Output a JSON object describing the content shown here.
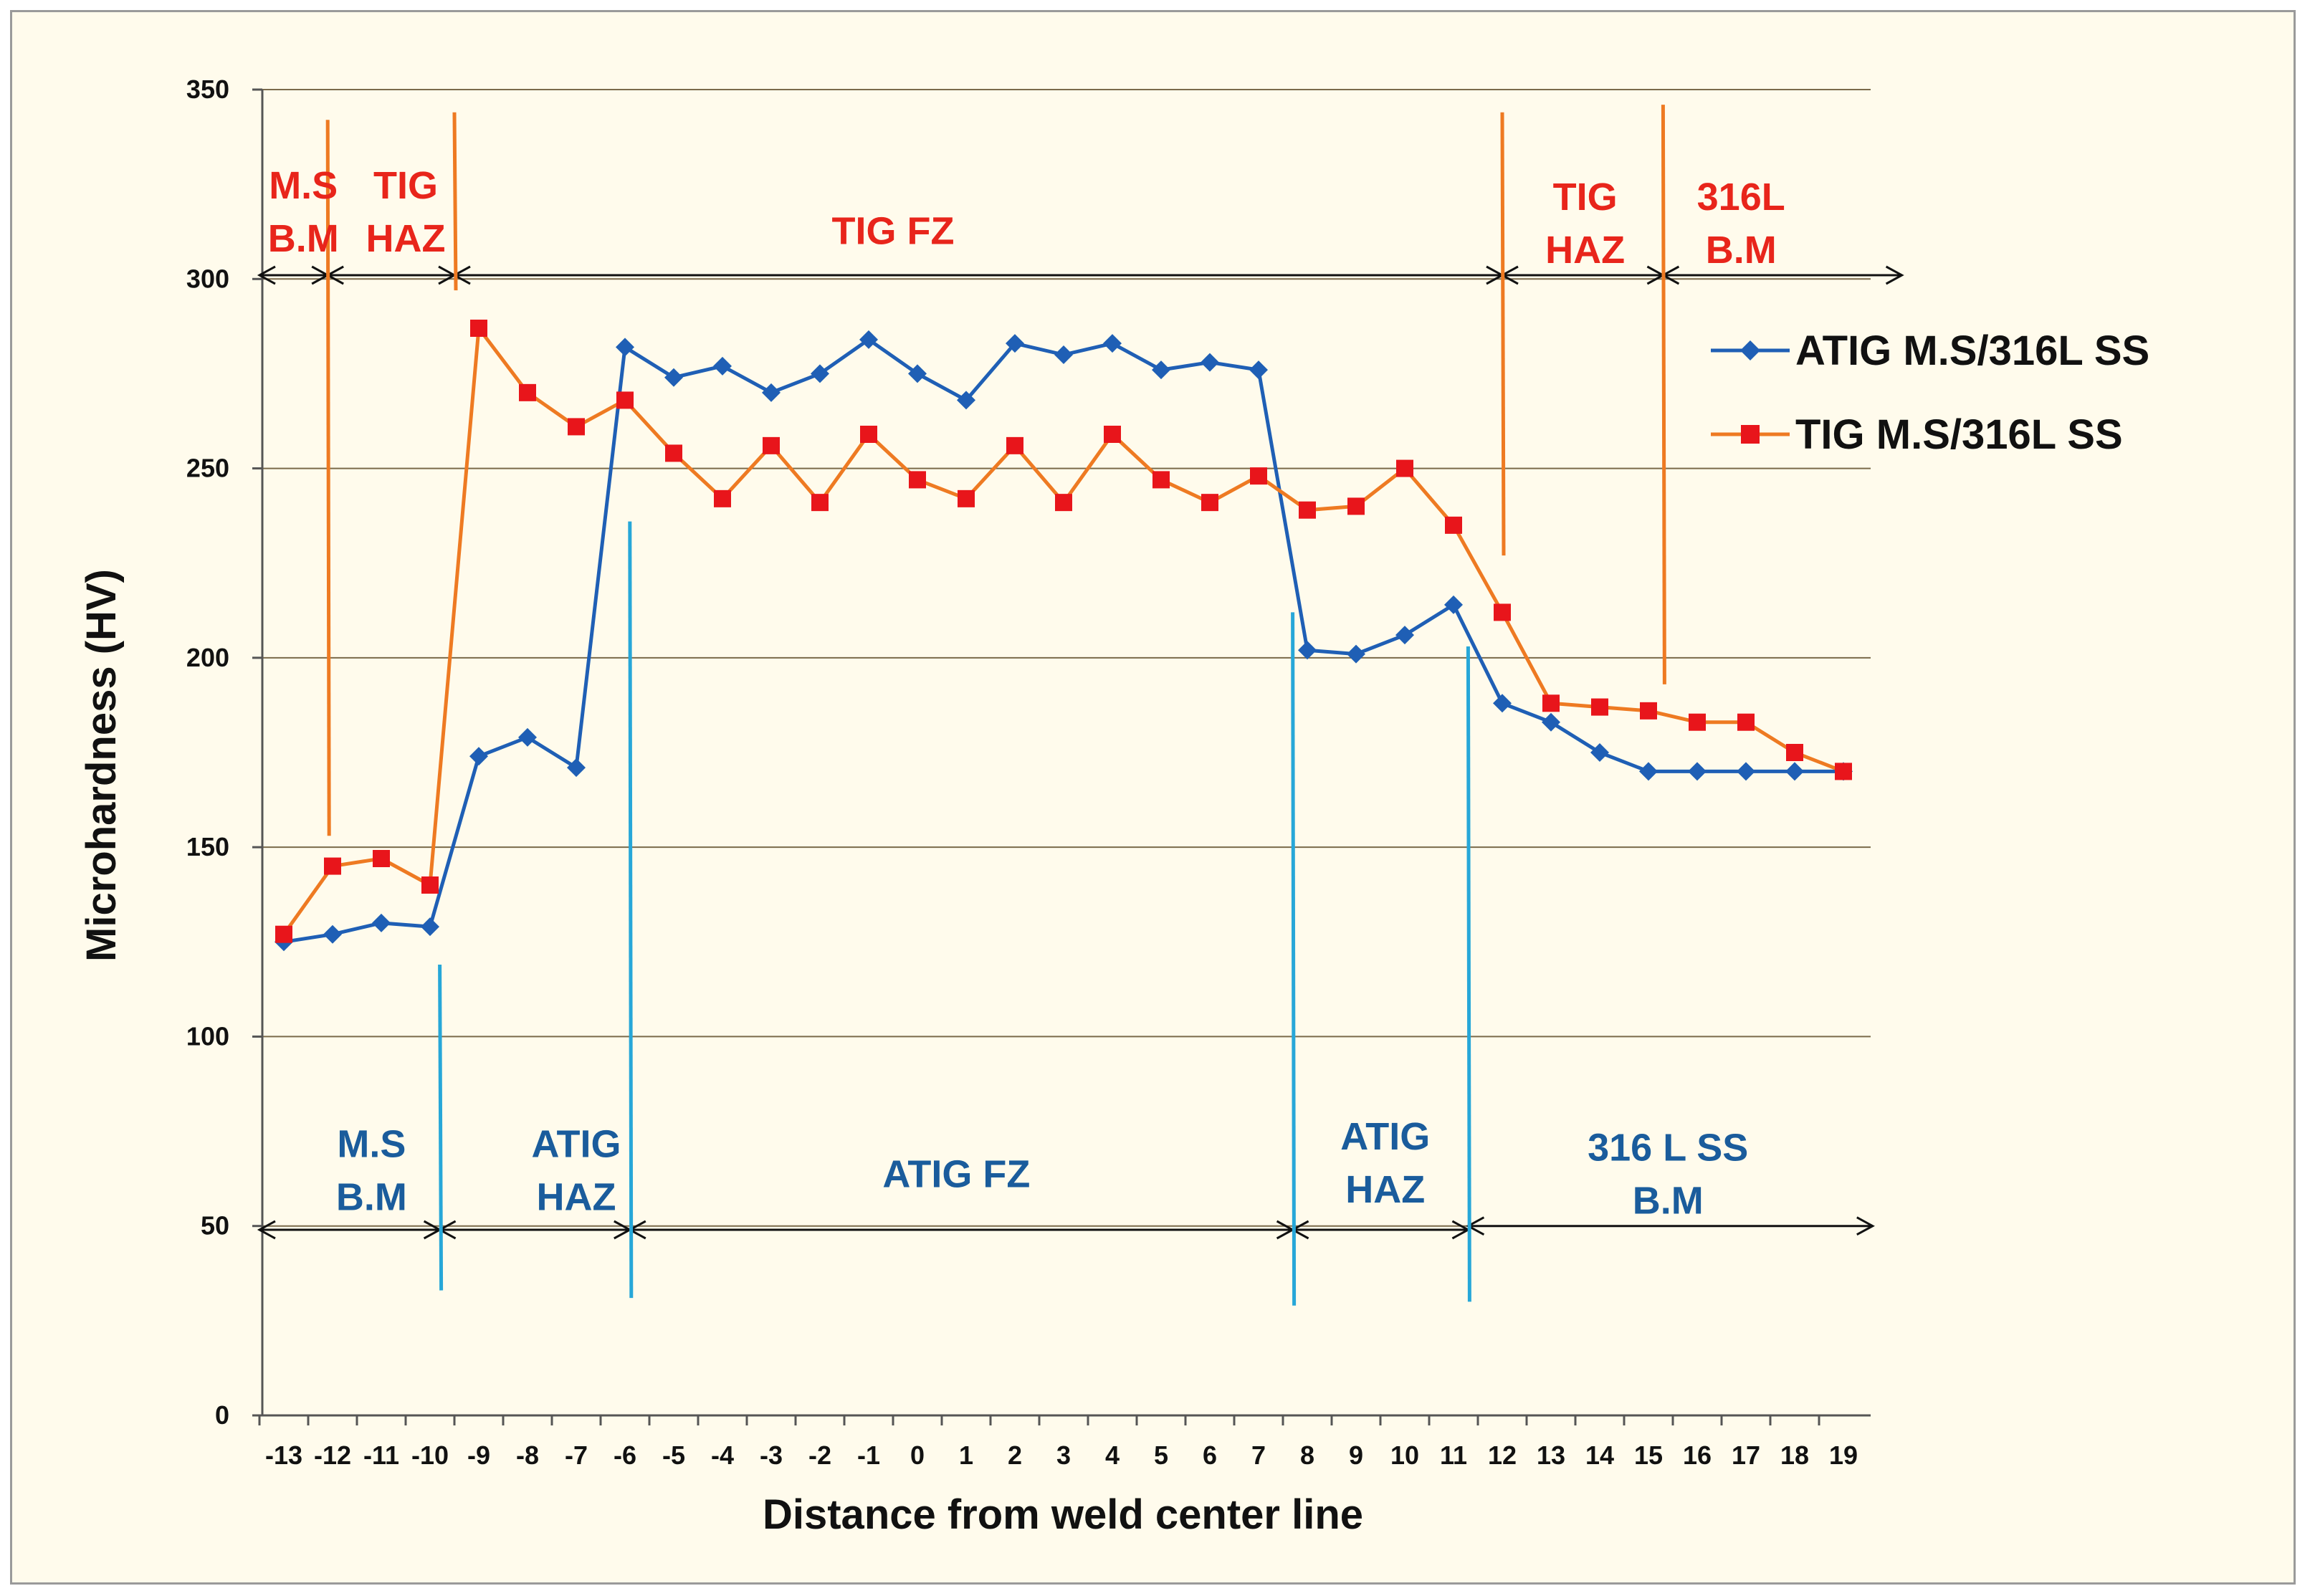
{
  "chart_data": {
    "type": "line",
    "title": "",
    "xlabel": "Distance  from weld center line",
    "ylabel": "Microhardness  (HV)",
    "ylim": [
      0,
      350
    ],
    "yticks": [
      0,
      50,
      100,
      150,
      200,
      250,
      300,
      350
    ],
    "x": [
      -13,
      -12,
      -11,
      -10,
      -9,
      -8,
      -7,
      -6,
      -5,
      -4,
      -3,
      -2,
      -1,
      0,
      1,
      2,
      3,
      4,
      5,
      6,
      7,
      8,
      9,
      10,
      11,
      12,
      13,
      14,
      15,
      16,
      17,
      18,
      19
    ],
    "grid": true,
    "legend_position": "right",
    "series": [
      {
        "name": "ATIG M.S/316L SS",
        "color": "#1f5fb5",
        "marker": "diamond",
        "values": [
          125,
          127,
          130,
          129,
          174,
          179,
          171,
          282,
          274,
          277,
          270,
          275,
          284,
          275,
          268,
          283,
          280,
          283,
          276,
          278,
          276,
          202,
          201,
          206,
          214,
          188,
          183,
          175,
          170,
          170,
          170,
          170,
          170
        ]
      },
      {
        "name": "TIG M.S/316L SS",
        "color": "#ee7a22",
        "marker_color": "#e8151b",
        "marker": "square",
        "values": [
          127,
          145,
          147,
          140,
          287,
          270,
          261,
          268,
          254,
          242,
          256,
          241,
          259,
          247,
          242,
          256,
          241,
          259,
          247,
          241,
          248,
          239,
          240,
          250,
          235,
          212,
          188,
          187,
          186,
          183,
          183,
          175,
          170
        ]
      }
    ],
    "annotations": {
      "tig": [
        {
          "lines": [
            "M.S",
            "B.M"
          ],
          "x": -12.6,
          "y_top": 325,
          "y_bottom": 311
        },
        {
          "lines": [
            "TIG",
            "HAZ"
          ],
          "x": -10.5,
          "y_top": 325,
          "y_bottom": 311
        },
        {
          "lines": [
            "TIG FZ"
          ],
          "x": -0.5,
          "y_top": 313
        },
        {
          "lines": [
            "TIG",
            "HAZ"
          ],
          "x": 13.7,
          "y_top": 322,
          "y_bottom": 308
        },
        {
          "lines": [
            "316L",
            "B.M"
          ],
          "x": 16.9,
          "y_top": 322,
          "y_bottom": 308
        }
      ],
      "atig": [
        {
          "lines": [
            "M.S",
            "B.M"
          ],
          "x": -11.2,
          "y_top": 72,
          "y_bottom": 58
        },
        {
          "lines": [
            "ATIG",
            "HAZ"
          ],
          "x": -7.0,
          "y_top": 72,
          "y_bottom": 58
        },
        {
          "lines": [
            "ATIG FZ"
          ],
          "x": 0.8,
          "y_top": 64
        },
        {
          "lines": [
            "ATIG",
            "HAZ"
          ],
          "x": 9.6,
          "y_top": 74,
          "y_bottom": 60
        },
        {
          "lines": [
            "316 L SS",
            "B.M"
          ],
          "x": 15.4,
          "y_top": 71,
          "y_bottom": 57
        }
      ]
    },
    "boundaries_tig": [
      {
        "x": -12.1,
        "y_from": 342,
        "y_to": 153
      },
      {
        "x": -9.5,
        "y_from": 344,
        "y_to": 297
      },
      {
        "x": 12.0,
        "y_from": 344,
        "y_to": 227
      },
      {
        "x": 15.3,
        "y_from": 346,
        "y_to": 193
      }
    ],
    "boundaries_atig": [
      {
        "x": -9.8,
        "y_from": 119,
        "y_to": 33
      },
      {
        "x": -5.9,
        "y_from": 236,
        "y_to": 31
      },
      {
        "x": 7.7,
        "y_from": 212,
        "y_to": 29
      },
      {
        "x": 11.3,
        "y_from": 203,
        "y_to": 30
      }
    ],
    "zone_arrows_tig": [
      {
        "from": -13.5,
        "to": -12.1,
        "y": 301
      },
      {
        "from": -12.1,
        "to": -9.5,
        "y": 301
      },
      {
        "from": -9.5,
        "to": 12.0,
        "y": 301
      },
      {
        "from": 12.0,
        "to": 15.3,
        "y": 301
      },
      {
        "from": 15.3,
        "to": 20.2,
        "y": 301
      }
    ],
    "zone_arrows_atig": [
      {
        "from": -13.5,
        "to": -9.8,
        "y": 49
      },
      {
        "from": -9.8,
        "to": -5.9,
        "y": 49
      },
      {
        "from": -5.9,
        "to": 7.7,
        "y": 49
      },
      {
        "from": 7.7,
        "to": 11.3,
        "y": 49
      },
      {
        "from": 11.3,
        "to": 19.6,
        "y": 50
      }
    ]
  }
}
